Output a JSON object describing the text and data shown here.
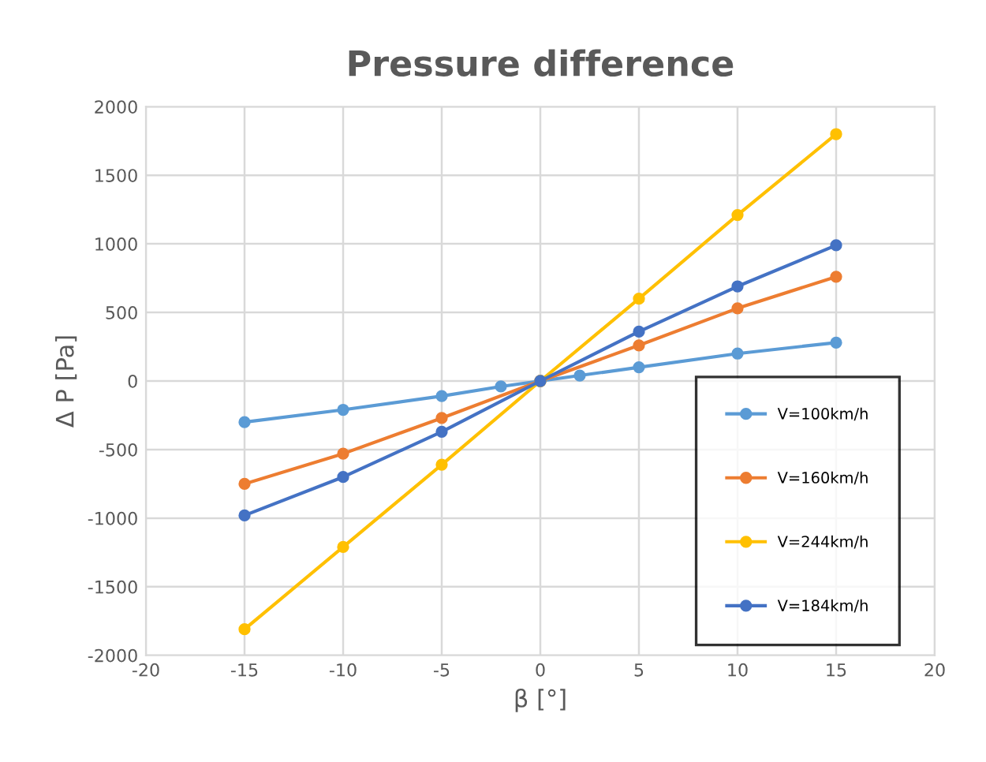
{
  "chart_data": {
    "type": "line",
    "title": "Pressure difference",
    "xlabel": "β [°]",
    "ylabel": "Δ P [Pa]",
    "xlim": [
      -20,
      20
    ],
    "xticks": [
      -20,
      -15,
      -10,
      -5,
      0,
      5,
      10,
      15,
      20
    ],
    "ylim": [
      -2000,
      2000
    ],
    "yticks": [
      -2000,
      -1500,
      -1000,
      -500,
      0,
      500,
      1000,
      1500,
      2000
    ],
    "grid": true,
    "legend": "bottom right",
    "marker": "circle",
    "line_style": "solid",
    "series": [
      {
        "name": "V=100km/h",
        "color": "#5b9bd5",
        "x": [
          -15,
          -10,
          -5,
          -2,
          0,
          2,
          5,
          10,
          15
        ],
        "values": [
          -300,
          -210,
          -110,
          -40,
          0,
          40,
          100,
          200,
          280
        ]
      },
      {
        "name": "V=160km/h",
        "color": "#ed7d31",
        "x": [
          -15,
          -10,
          -5,
          0,
          5,
          10,
          15
        ],
        "values": [
          -750,
          -530,
          -270,
          0,
          260,
          530,
          760
        ]
      },
      {
        "name": "V=244km/h",
        "color": "#ffc000",
        "x": [
          -15,
          -10,
          -5,
          0,
          5,
          10,
          15
        ],
        "values": [
          -1810,
          -1210,
          -610,
          0,
          600,
          1210,
          1800
        ]
      },
      {
        "name": "V=184km/h",
        "color": "#4472c4",
        "x": [
          -15,
          -10,
          -5,
          0,
          5,
          10,
          15
        ],
        "values": [
          -980,
          -700,
          -370,
          0,
          360,
          690,
          990
        ]
      }
    ]
  }
}
